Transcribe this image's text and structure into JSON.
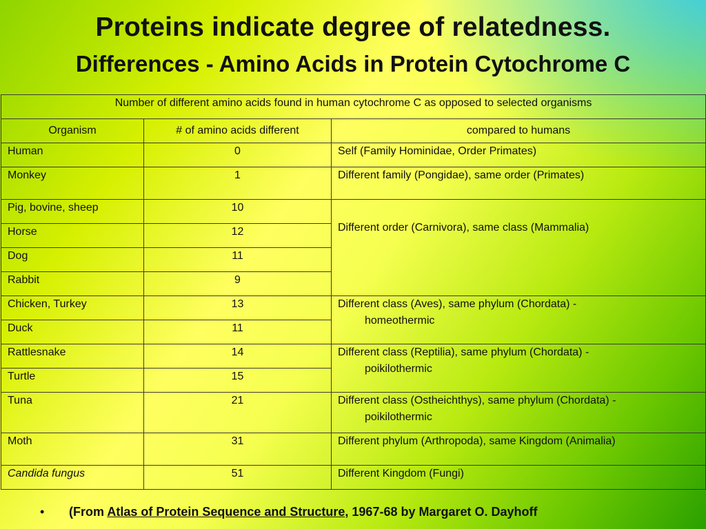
{
  "slide": {
    "title": "Proteins indicate degree of relatedness.",
    "subtitle": "Differences - Amino Acids in Protein Cytochrome C"
  },
  "table": {
    "caption": "Number of different amino acids found in human cytochrome C as opposed to selected organisms",
    "headers": [
      "Organism",
      "# of amino acids different",
      "compared to humans"
    ],
    "rows": [
      {
        "organism": "Human",
        "count": "0"
      },
      {
        "organism": "Monkey",
        "count": "1"
      },
      {
        "organism": "Pig, bovine, sheep",
        "count": "10"
      },
      {
        "organism": "Horse",
        "count": "12"
      },
      {
        "organism": "Dog",
        "count": "11"
      },
      {
        "organism": "Rabbit",
        "count": "9"
      },
      {
        "organism": "Chicken, Turkey",
        "count": "13"
      },
      {
        "organism": "Duck",
        "count": "11"
      },
      {
        "organism": "Rattlesnake",
        "count": "14"
      },
      {
        "organism": "Turtle",
        "count": "15"
      },
      {
        "organism": "Tuna",
        "count": "21"
      },
      {
        "organism": "Moth",
        "count": "31"
      },
      {
        "organism": "Candida fungus",
        "count": "51"
      }
    ],
    "comparisons": [
      {
        "line1": "Self (Family Hominidae, Order Primates)"
      },
      {
        "line1": "Different family (Pongidae), same order (Primates)"
      },
      {
        "line1": "Different order (Carnivora), same class (Mammalia)"
      },
      {
        "line1": "Different class (Aves), same phylum (Chordata) -",
        "line2": "homeothermic"
      },
      {
        "line1": "Different class (Reptilia), same phylum (Chordata) -",
        "line2": "poikilothermic"
      },
      {
        "line1": "Different class (Ostheichthys), same phylum (Chordata) -",
        "line2": "poikilothermic"
      },
      {
        "line1": "Different phylum (Arthropoda), same Kingdom (Animalia)"
      },
      {
        "line1": "Different Kingdom (Fungi)"
      }
    ]
  },
  "footer": {
    "bullet": "•",
    "prefix": "(From ",
    "book": "Atlas of Protein Sequence and Structure",
    "suffix": ", 1967-68 by Margaret O. Dayhoff"
  }
}
